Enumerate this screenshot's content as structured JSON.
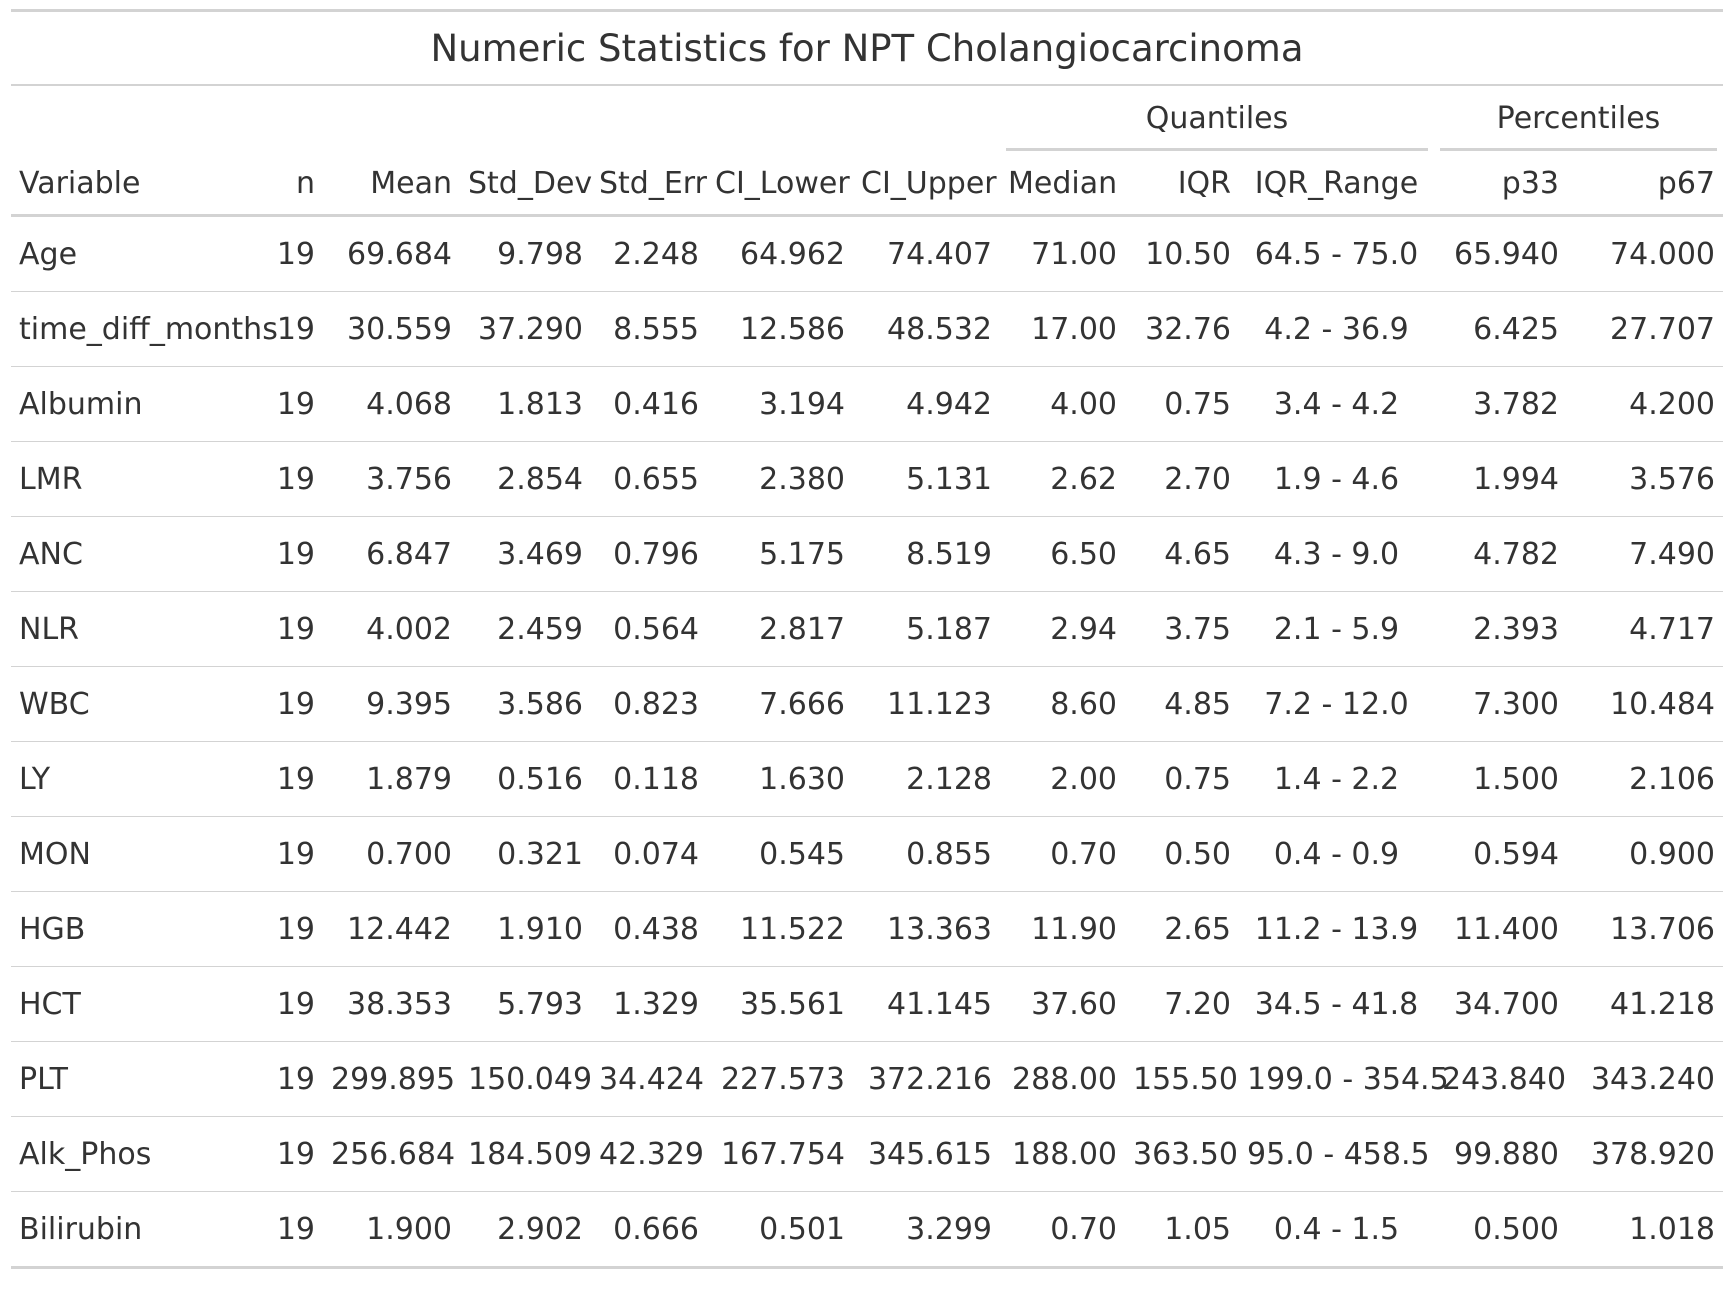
{
  "title": "Numeric Statistics for NPT Cholangiocarcinoma",
  "spanners": {
    "quantiles": "Quantiles",
    "percentiles": "Percentiles"
  },
  "columns": [
    "Variable",
    "n",
    "Mean",
    "Std_Dev",
    "Std_Err",
    "CI_Lower",
    "CI_Upper",
    "Median",
    "IQR",
    "IQR_Range",
    "p33",
    "p67"
  ],
  "rows": [
    [
      "Age",
      "19",
      "69.684",
      "9.798",
      "2.248",
      "64.962",
      "74.407",
      "71.00",
      "10.50",
      "64.5 - 75.0",
      "65.940",
      "74.000"
    ],
    [
      "time_diff_months",
      "19",
      "30.559",
      "37.290",
      "8.555",
      "12.586",
      "48.532",
      "17.00",
      "32.76",
      "4.2 - 36.9",
      "6.425",
      "27.707"
    ],
    [
      "Albumin",
      "19",
      "4.068",
      "1.813",
      "0.416",
      "3.194",
      "4.942",
      "4.00",
      "0.75",
      "3.4 - 4.2",
      "3.782",
      "4.200"
    ],
    [
      "LMR",
      "19",
      "3.756",
      "2.854",
      "0.655",
      "2.380",
      "5.131",
      "2.62",
      "2.70",
      "1.9 - 4.6",
      "1.994",
      "3.576"
    ],
    [
      "ANC",
      "19",
      "6.847",
      "3.469",
      "0.796",
      "5.175",
      "8.519",
      "6.50",
      "4.65",
      "4.3 - 9.0",
      "4.782",
      "7.490"
    ],
    [
      "NLR",
      "19",
      "4.002",
      "2.459",
      "0.564",
      "2.817",
      "5.187",
      "2.94",
      "3.75",
      "2.1 - 5.9",
      "2.393",
      "4.717"
    ],
    [
      "WBC",
      "19",
      "9.395",
      "3.586",
      "0.823",
      "7.666",
      "11.123",
      "8.60",
      "4.85",
      "7.2 - 12.0",
      "7.300",
      "10.484"
    ],
    [
      "LY",
      "19",
      "1.879",
      "0.516",
      "0.118",
      "1.630",
      "2.128",
      "2.00",
      "0.75",
      "1.4 - 2.2",
      "1.500",
      "2.106"
    ],
    [
      "MON",
      "19",
      "0.700",
      "0.321",
      "0.074",
      "0.545",
      "0.855",
      "0.70",
      "0.50",
      "0.4 - 0.9",
      "0.594",
      "0.900"
    ],
    [
      "HGB",
      "19",
      "12.442",
      "1.910",
      "0.438",
      "11.522",
      "13.363",
      "11.90",
      "2.65",
      "11.2 - 13.9",
      "11.400",
      "13.706"
    ],
    [
      "HCT",
      "19",
      "38.353",
      "5.793",
      "1.329",
      "35.561",
      "41.145",
      "37.60",
      "7.20",
      "34.5 - 41.8",
      "34.700",
      "41.218"
    ],
    [
      "PLT",
      "19",
      "299.895",
      "150.049",
      "34.424",
      "227.573",
      "372.216",
      "288.00",
      "155.50",
      "199.0 - 354.5",
      "243.840",
      "343.240"
    ],
    [
      "Alk_Phos",
      "19",
      "256.684",
      "184.509",
      "42.329",
      "167.754",
      "345.615",
      "188.00",
      "363.50",
      "95.0 - 458.5",
      "99.880",
      "378.920"
    ],
    [
      "Bilirubin",
      "19",
      "1.900",
      "2.902",
      "0.666",
      "0.501",
      "3.299",
      "0.70",
      "1.05",
      "0.4 - 1.5",
      "0.500",
      "1.018"
    ]
  ]
}
